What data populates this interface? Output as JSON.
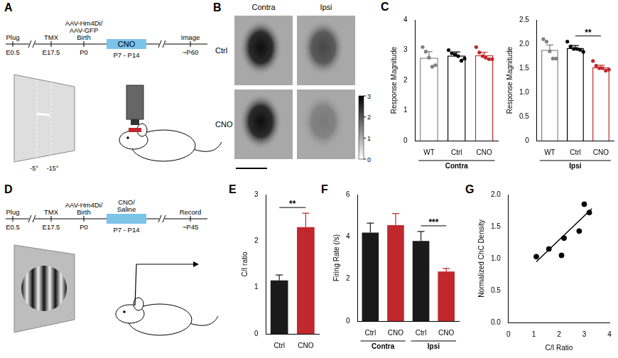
{
  "diagrams": {
    "A": {
      "panel": "A",
      "timeline": [
        {
          "above": [
            "Plug"
          ],
          "below": "E0.5"
        },
        {
          "above": [
            "TMX"
          ],
          "below": "E17.5"
        },
        {
          "above": [
            "AAV-Hm4Di/",
            "AAV-GFP",
            "Birth"
          ],
          "below": "P0"
        },
        {
          "period": true,
          "inside": "CNO",
          "below": "P7 - P14"
        },
        {
          "above": [
            "Image"
          ],
          "below": "~P60"
        }
      ],
      "stimulus_labels": [
        "-5°",
        "-15°"
      ]
    },
    "B": {
      "panel": "B",
      "columns": [
        "Contra",
        "Ipsi"
      ],
      "rows": [
        "Ctrl",
        "CNO"
      ],
      "colorbar": {
        "range": [
          0,
          3
        ],
        "ticks": [
          0,
          1,
          2,
          3
        ]
      }
    },
    "D": {
      "panel": "D",
      "timeline": [
        {
          "above": [
            "Plug"
          ],
          "below": "E0.5"
        },
        {
          "above": [
            "TMX"
          ],
          "below": "E17.5"
        },
        {
          "above": [
            "AAV-Hm4Di/",
            "Birth"
          ],
          "below": "P0"
        },
        {
          "period": true,
          "above": [
            "CNO/",
            "Saline"
          ],
          "below": "P7 - P14"
        },
        {
          "above": [
            "Record"
          ],
          "below": "~P45"
        }
      ]
    }
  },
  "chart_data": [
    {
      "panel": "C",
      "type": "bar",
      "ylabel": "Response Magnitude",
      "categories": [
        "WT",
        "Ctrl",
        "CNO"
      ],
      "values": [
        2.75,
        2.82,
        2.83
      ],
      "errors": [
        0.2,
        0.12,
        0.1
      ],
      "points": [
        [
          3.1,
          2.95,
          2.75,
          2.45,
          2.5
        ],
        [
          3.0,
          2.9,
          2.85,
          2.8,
          2.65,
          2.72
        ],
        [
          3.1,
          2.92,
          2.8,
          2.75,
          2.7,
          2.7
        ]
      ],
      "colors": [
        "#808080",
        "#000000",
        "#c0282d"
      ],
      "ylim": [
        0,
        4
      ],
      "yticks": [
        0,
        1,
        2,
        3,
        4
      ],
      "groups": [
        {
          "label": "Contra",
          "from": 0,
          "to": 2
        }
      ]
    },
    {
      "type": "bar",
      "ylabel": "Response Magnitude",
      "categories": [
        "WT",
        "Ctrl",
        "CNO"
      ],
      "values": [
        1.88,
        1.92,
        1.52
      ],
      "errors": [
        0.1,
        0.05,
        0.04
      ],
      "points": [
        [
          2.1,
          2.05,
          1.85,
          1.7,
          1.7
        ],
        [
          2.05,
          1.95,
          1.9,
          1.9,
          1.88,
          1.84
        ],
        [
          1.65,
          1.55,
          1.5,
          1.5,
          1.45,
          1.47
        ]
      ],
      "colors": [
        "#808080",
        "#000000",
        "#c0282d"
      ],
      "ylim": [
        0,
        2.5
      ],
      "yticks": [
        0,
        0.5,
        {
          "value": 1,
          "label": "1.0"
        },
        1.5,
        {
          "value": 2,
          "label": "2.0"
        },
        2.5
      ],
      "annotations": [
        {
          "text": "**",
          "from": 1,
          "to": 2
        }
      ],
      "groups": [
        {
          "label": "Ipsi",
          "from": 0,
          "to": 2
        }
      ]
    },
    {
      "panel": "E",
      "type": "bar",
      "ylabel": "C/I ratio",
      "categories": [
        "Ctrl",
        "CNO"
      ],
      "values": [
        1.15,
        2.3
      ],
      "errors": [
        0.12,
        0.3
      ],
      "colors": [
        "#1a1a1a",
        "#c0282d"
      ],
      "ylim": [
        0,
        3
      ],
      "yticks": [
        0,
        1,
        2,
        3
      ],
      "annotations": [
        {
          "text": "**",
          "from": 0,
          "to": 1
        }
      ]
    },
    {
      "panel": "F",
      "type": "bar",
      "ylabel": "Firing Rate (/s)",
      "categories": [
        "Ctrl",
        "CNO",
        "Ctrl",
        "CNO"
      ],
      "values": [
        4.2,
        4.55,
        3.8,
        2.35
      ],
      "errors": [
        0.45,
        0.55,
        0.45,
        0.15
      ],
      "colors": [
        "#1a1a1a",
        "#c0282d",
        "#1a1a1a",
        "#c0282d"
      ],
      "ylim": [
        0,
        6
      ],
      "yticks": [
        0,
        2,
        4,
        6
      ],
      "annotations": [
        {
          "text": "***",
          "from": 2,
          "to": 3
        }
      ],
      "groups": [
        {
          "label": "Contra",
          "from": 0,
          "to": 1
        },
        {
          "label": "Ipsi",
          "from": 2,
          "to": 3
        }
      ]
    },
    {
      "panel": "G",
      "type": "scatter",
      "xlabel": "C/I Ratio",
      "ylabel": "Normalized ChC Density",
      "x": [
        1.1,
        1.6,
        2.1,
        2.2,
        2.8,
        3.0,
        3.2
      ],
      "values": [
        1.03,
        1.15,
        1.05,
        1.32,
        1.43,
        1.85,
        1.72
      ],
      "fit_line": {
        "x": [
          1.1,
          3.3
        ],
        "y": [
          0.95,
          1.78
        ]
      },
      "color": "#000000",
      "xlim": [
        0,
        4
      ],
      "xticks": [
        0,
        1,
        2,
        3,
        4
      ],
      "ylim": [
        0,
        2
      ],
      "yticks": [
        {
          "value": 0,
          "label": "0.0"
        },
        0.5,
        {
          "value": 1,
          "label": "1.0"
        },
        1.5,
        {
          "value": 2,
          "label": "2.0"
        }
      ]
    }
  ]
}
